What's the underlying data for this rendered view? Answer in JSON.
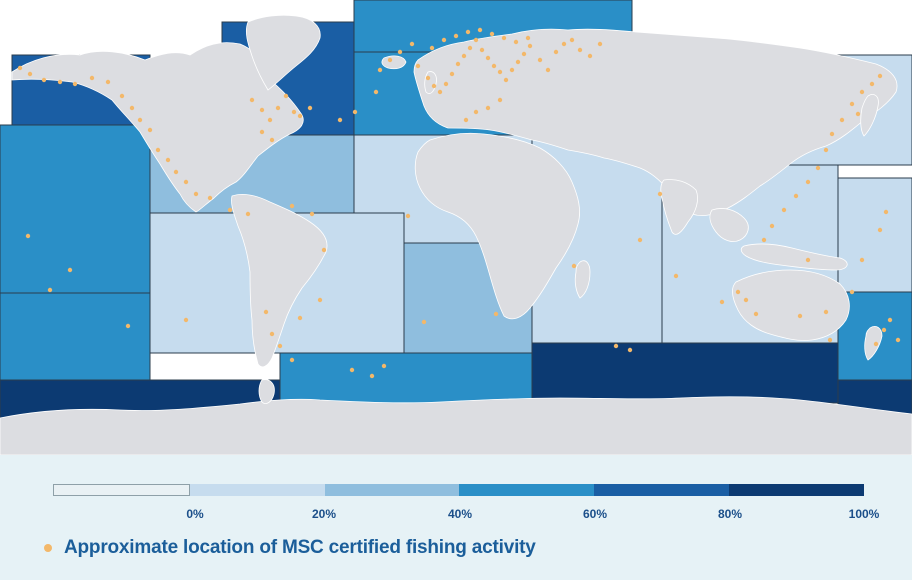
{
  "colors": {
    "land": "#dcdde1",
    "land_stroke": "#ffffff",
    "zone_stroke": "#2b3c4c",
    "marker": "#f3b86a",
    "label": "#1b4f8a",
    "legend_text": "#1b5e9a"
  },
  "scale": {
    "colors": [
      "#e9f1f4",
      "#c6dcee",
      "#8fbede",
      "#2a8fc7",
      "#1a5ea4",
      "#0c3a72"
    ],
    "ticks": [
      "0%",
      "20%",
      "40%",
      "60%",
      "80%",
      "100%"
    ]
  },
  "legend": {
    "marker_label": "Approximate location of MSC certified fishing activity"
  },
  "fishing_zones": [
    {
      "id": "arctic-sea",
      "share": 0.45
    },
    {
      "id": "northwest-atlantic",
      "share": 0.8
    },
    {
      "id": "northeast-atlantic",
      "share": 0.45
    },
    {
      "id": "western-central-atlantic",
      "share": 0.3
    },
    {
      "id": "eastern-central-atlantic",
      "share": 0.15
    },
    {
      "id": "southwest-atlantic",
      "share": 0.15
    },
    {
      "id": "southeast-atlantic",
      "share": 0.35
    },
    {
      "id": "western-indian-ocean",
      "share": 0.15
    },
    {
      "id": "eastern-indian-ocean",
      "share": 0.15
    },
    {
      "id": "antarctic-indian-ocean",
      "share": 0.95
    },
    {
      "id": "antarctic-atlantic",
      "share": 0.55
    },
    {
      "id": "northwest-pacific",
      "share": 0.15
    },
    {
      "id": "northeast-pacific",
      "share": 0.75
    },
    {
      "id": "western-central-pacific",
      "share": 0.15
    },
    {
      "id": "eastern-central-pacific",
      "share": 0.55
    },
    {
      "id": "southwest-pacific",
      "share": 0.6
    },
    {
      "id": "southeast-pacific",
      "share": 0.5
    },
    {
      "id": "antarctic-pacific",
      "share": 0.95
    }
  ]
}
